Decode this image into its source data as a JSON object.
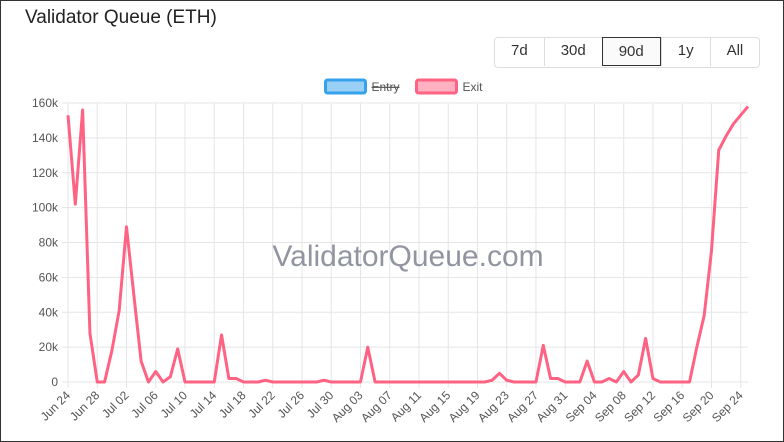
{
  "title": "Validator Queue (ETH)",
  "range_buttons": [
    "7d",
    "30d",
    "90d",
    "1y",
    "All"
  ],
  "selected_button": 2,
  "chart_data": {
    "type": "line",
    "watermark": "ValidatorQueue.com",
    "categories": [
      "Jun 24",
      null,
      null,
      null,
      "Jun 28",
      null,
      null,
      null,
      "Jul 02",
      null,
      null,
      null,
      "Jul 06",
      null,
      null,
      null,
      "Jul 10",
      null,
      null,
      null,
      "Jul 14",
      null,
      null,
      null,
      "Jul 18",
      null,
      null,
      null,
      "Jul 22",
      null,
      null,
      null,
      "Jul 26",
      null,
      null,
      null,
      "Jul 30",
      null,
      null,
      null,
      "Aug 03",
      null,
      null,
      null,
      "Aug 07",
      null,
      null,
      null,
      "Aug 11",
      null,
      null,
      null,
      "Aug 15",
      null,
      null,
      null,
      "Aug 19",
      null,
      null,
      null,
      "Aug 23",
      null,
      null,
      null,
      "Aug 27",
      null,
      null,
      null,
      "Aug 31",
      null,
      null,
      null,
      "Sep 04",
      null,
      null,
      null,
      "Sep 08",
      null,
      null,
      null,
      "Sep 12",
      null,
      null,
      null,
      "Sep 16",
      null,
      null,
      null,
      "Sep 20",
      null,
      null,
      null,
      "Sep 24",
      null
    ],
    "series": [
      {
        "name": "Entry",
        "color": "#36a2eb",
        "hidden": true,
        "values": [
          null,
          null,
          null,
          null,
          null,
          null,
          null,
          null,
          null,
          null,
          null,
          null,
          null,
          null,
          null,
          null,
          null,
          null,
          null,
          null,
          null,
          null,
          null,
          null,
          null,
          null,
          null,
          null,
          null,
          null,
          null,
          null,
          null,
          null,
          null,
          null,
          null,
          null,
          null,
          null,
          null,
          null,
          null,
          null,
          null,
          null,
          null,
          null,
          null,
          null,
          null,
          null,
          null,
          null,
          null,
          null,
          null,
          null,
          null,
          null,
          null,
          null,
          null,
          null,
          null,
          null,
          null,
          null,
          null,
          null,
          null,
          null,
          null,
          null,
          null,
          null,
          null,
          null,
          null,
          null,
          null,
          null,
          null,
          null,
          null,
          null,
          null,
          null,
          null,
          null,
          null,
          null,
          null,
          null
        ]
      },
      {
        "name": "Exit",
        "color": "#ff6384",
        "hidden": false,
        "values": [
          153000,
          102000,
          156000,
          28000,
          0,
          0,
          18000,
          41000,
          89000,
          50000,
          12000,
          0,
          6000,
          0,
          3000,
          19000,
          0,
          0,
          0,
          0,
          0,
          27000,
          2000,
          2000,
          0,
          0,
          0,
          1000,
          0,
          0,
          0,
          0,
          0,
          0,
          0,
          1000,
          0,
          0,
          0,
          0,
          0,
          20000,
          0,
          0,
          0,
          0,
          0,
          0,
          0,
          0,
          0,
          0,
          0,
          0,
          0,
          0,
          0,
          0,
          1000,
          5000,
          1000,
          0,
          0,
          0,
          0,
          21000,
          2000,
          2000,
          0,
          0,
          0,
          12000,
          0,
          0,
          2000,
          0,
          6000,
          0,
          4000,
          25000,
          2000,
          0,
          0,
          0,
          0,
          0,
          20000,
          38000,
          75000,
          133000,
          141000,
          148000,
          153000,
          158000
        ]
      }
    ],
    "ylim": [
      0,
      160000
    ],
    "yticks": [
      {
        "value": 0,
        "label": "0"
      },
      {
        "value": 20000,
        "label": "20k"
      },
      {
        "value": 40000,
        "label": "40k"
      },
      {
        "value": 60000,
        "label": "60k"
      },
      {
        "value": 80000,
        "label": "80k"
      },
      {
        "value": 100000,
        "label": "100k"
      },
      {
        "value": 120000,
        "label": "120k"
      },
      {
        "value": 140000,
        "label": "140k"
      },
      {
        "value": 160000,
        "label": "160k"
      }
    ],
    "grid": true,
    "legend": "top"
  }
}
